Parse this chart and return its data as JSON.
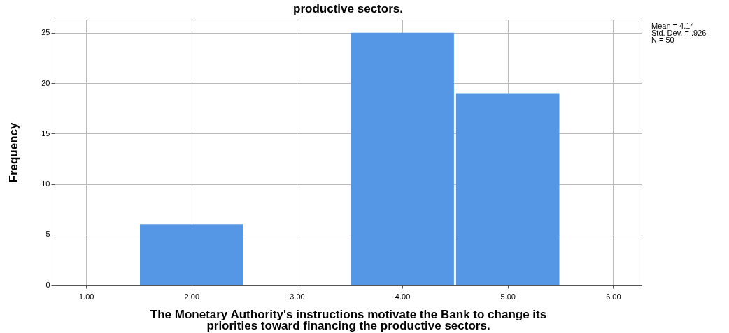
{
  "chart_data": {
    "type": "histogram",
    "title": "productive sectors.",
    "xlabel": "The Monetary Authority's instructions motivate the Bank to change its priorities toward financing the productive sectors.",
    "ylabel": "Frequency",
    "bins": [
      1.5,
      2.5,
      3.5,
      4.5,
      5.5
    ],
    "values": [
      6,
      0,
      25,
      19
    ],
    "color": "#5597e5",
    "xlim": [
      0.7,
      6.27
    ],
    "ylim": [
      0,
      26.3
    ],
    "xticks": [
      {
        "value": 1,
        "label": "1.00"
      },
      {
        "value": 2,
        "label": "2.00"
      },
      {
        "value": 3,
        "label": "3.00"
      },
      {
        "value": 4,
        "label": "4.00"
      },
      {
        "value": 5,
        "label": "5.00"
      },
      {
        "value": 6,
        "label": "6.00"
      }
    ],
    "yticks": [
      0,
      5,
      10,
      15,
      20,
      25
    ],
    "grid": true,
    "annotations": [
      "Mean = 4.14",
      "Std. Dev. = .926",
      "N = 50"
    ]
  }
}
